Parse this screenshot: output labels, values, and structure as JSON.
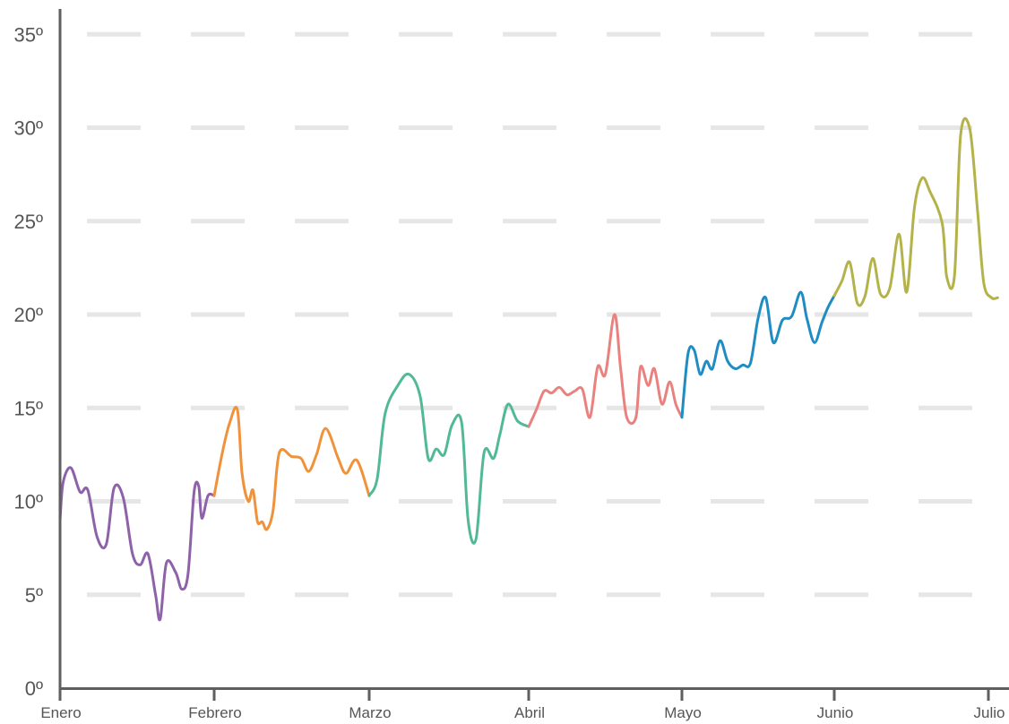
{
  "chart_data": {
    "type": "line",
    "title": "",
    "xlabel": "",
    "ylabel": "",
    "ylim": [
      0,
      35
    ],
    "y_ticks": [
      {
        "value": 0,
        "label": "0º"
      },
      {
        "value": 5,
        "label": "5º"
      },
      {
        "value": 10,
        "label": "10º"
      },
      {
        "value": 15,
        "label": "15º"
      },
      {
        "value": 20,
        "label": "20º"
      },
      {
        "value": 25,
        "label": "25º"
      },
      {
        "value": 30,
        "label": "30º"
      },
      {
        "value": 35,
        "label": "35º"
      }
    ],
    "x_ticks": [
      {
        "month": 0,
        "label": "Enero"
      },
      {
        "month": 1,
        "label": "Febrero"
      },
      {
        "month": 2,
        "label": "Marzo"
      },
      {
        "month": 3,
        "label": "Abril"
      },
      {
        "month": 4,
        "label": "Mayo"
      },
      {
        "month": 5,
        "label": "Junio"
      },
      {
        "month": 6,
        "label": "Julio"
      }
    ],
    "grid": true,
    "series": [
      {
        "color": "#8e62a9",
        "points": [
          [
            0.0,
            9
          ],
          [
            0.02,
            11
          ],
          [
            0.07,
            11.8
          ],
          [
            0.13,
            10.5
          ],
          [
            0.18,
            10.6
          ],
          [
            0.24,
            8.1
          ],
          [
            0.3,
            7.7
          ],
          [
            0.35,
            10.7
          ],
          [
            0.41,
            10.2
          ],
          [
            0.47,
            7.2
          ],
          [
            0.52,
            6.6
          ],
          [
            0.57,
            7.2
          ],
          [
            0.62,
            5
          ],
          [
            0.65,
            3.7
          ],
          [
            0.69,
            6.7
          ],
          [
            0.75,
            6.2
          ],
          [
            0.79,
            5.3
          ],
          [
            0.83,
            6.1
          ],
          [
            0.87,
            10.5
          ],
          [
            0.9,
            10.8
          ],
          [
            0.92,
            9.1
          ],
          [
            0.96,
            10.3
          ],
          [
            1.0,
            10.3
          ]
        ]
      },
      {
        "color": "#f0923c",
        "points": [
          [
            1.0,
            10.3
          ],
          [
            1.05,
            12.5
          ],
          [
            1.1,
            14.2
          ],
          [
            1.15,
            14.9
          ],
          [
            1.18,
            11.5
          ],
          [
            1.22,
            10
          ],
          [
            1.25,
            10.6
          ],
          [
            1.28,
            8.9
          ],
          [
            1.31,
            8.9
          ],
          [
            1.34,
            8.5
          ],
          [
            1.38,
            9.5
          ],
          [
            1.42,
            12.6
          ],
          [
            1.5,
            12.4
          ],
          [
            1.56,
            12.3
          ],
          [
            1.61,
            11.6
          ],
          [
            1.66,
            12.5
          ],
          [
            1.72,
            13.9
          ],
          [
            1.8,
            12.3
          ],
          [
            1.85,
            11.5
          ],
          [
            1.92,
            12.2
          ],
          [
            2.0,
            10.3
          ]
        ]
      },
      {
        "color": "#52b996",
        "points": [
          [
            2.0,
            10.3
          ],
          [
            2.05,
            11.2
          ],
          [
            2.1,
            14.7
          ],
          [
            2.18,
            16.2
          ],
          [
            2.25,
            16.8
          ],
          [
            2.32,
            15.6
          ],
          [
            2.37,
            12.3
          ],
          [
            2.42,
            12.8
          ],
          [
            2.47,
            12.5
          ],
          [
            2.52,
            14.1
          ],
          [
            2.58,
            14.2
          ],
          [
            2.62,
            9
          ],
          [
            2.67,
            8
          ],
          [
            2.72,
            12.6
          ],
          [
            2.78,
            12.3
          ],
          [
            2.82,
            13.6
          ],
          [
            2.87,
            15.2
          ],
          [
            2.93,
            14.3
          ],
          [
            3.0,
            14
          ]
        ]
      },
      {
        "color": "#e9817f",
        "points": [
          [
            3.0,
            14
          ],
          [
            3.05,
            14.9
          ],
          [
            3.1,
            15.9
          ],
          [
            3.15,
            15.8
          ],
          [
            3.2,
            16.1
          ],
          [
            3.25,
            15.7
          ],
          [
            3.3,
            15.9
          ],
          [
            3.35,
            16
          ],
          [
            3.4,
            14.5
          ],
          [
            3.45,
            17.2
          ],
          [
            3.5,
            16.8
          ],
          [
            3.56,
            20
          ],
          [
            3.6,
            17.1
          ],
          [
            3.64,
            14.5
          ],
          [
            3.7,
            14.5
          ],
          [
            3.73,
            17.2
          ],
          [
            3.78,
            16.2
          ],
          [
            3.82,
            17.1
          ],
          [
            3.87,
            15.2
          ],
          [
            3.92,
            16.4
          ],
          [
            3.96,
            15.2
          ],
          [
            4.0,
            14.5
          ]
        ]
      },
      {
        "color": "#1f8cc4",
        "points": [
          [
            4.0,
            14.5
          ],
          [
            4.04,
            17.9
          ],
          [
            4.08,
            18.1
          ],
          [
            4.12,
            16.8
          ],
          [
            4.16,
            17.5
          ],
          [
            4.2,
            17.1
          ],
          [
            4.25,
            18.6
          ],
          [
            4.3,
            17.5
          ],
          [
            4.35,
            17.1
          ],
          [
            4.4,
            17.3
          ],
          [
            4.45,
            17.4
          ],
          [
            4.5,
            19.8
          ],
          [
            4.55,
            20.9
          ],
          [
            4.6,
            18.5
          ],
          [
            4.66,
            19.7
          ],
          [
            4.72,
            19.9
          ],
          [
            4.78,
            21.2
          ],
          [
            4.82,
            19.8
          ],
          [
            4.87,
            18.5
          ],
          [
            4.92,
            19.6
          ],
          [
            4.96,
            20.4
          ],
          [
            5.0,
            21
          ]
        ]
      },
      {
        "color": "#b3b24b",
        "points": [
          [
            5.0,
            21
          ],
          [
            5.05,
            21.8
          ],
          [
            5.1,
            22.8
          ],
          [
            5.15,
            20.6
          ],
          [
            5.2,
            21
          ],
          [
            5.25,
            23
          ],
          [
            5.3,
            21.1
          ],
          [
            5.36,
            21.4
          ],
          [
            5.42,
            24.3
          ],
          [
            5.47,
            21.2
          ],
          [
            5.52,
            25.7
          ],
          [
            5.57,
            27.3
          ],
          [
            5.62,
            26.6
          ],
          [
            5.7,
            24.9
          ],
          [
            5.73,
            22
          ],
          [
            5.78,
            22.1
          ],
          [
            5.82,
            29.6
          ],
          [
            5.88,
            29.9
          ],
          [
            5.93,
            25.5
          ],
          [
            5.97,
            21.7
          ],
          [
            6.02,
            20.9
          ],
          [
            6.06,
            20.9
          ]
        ]
      }
    ]
  }
}
